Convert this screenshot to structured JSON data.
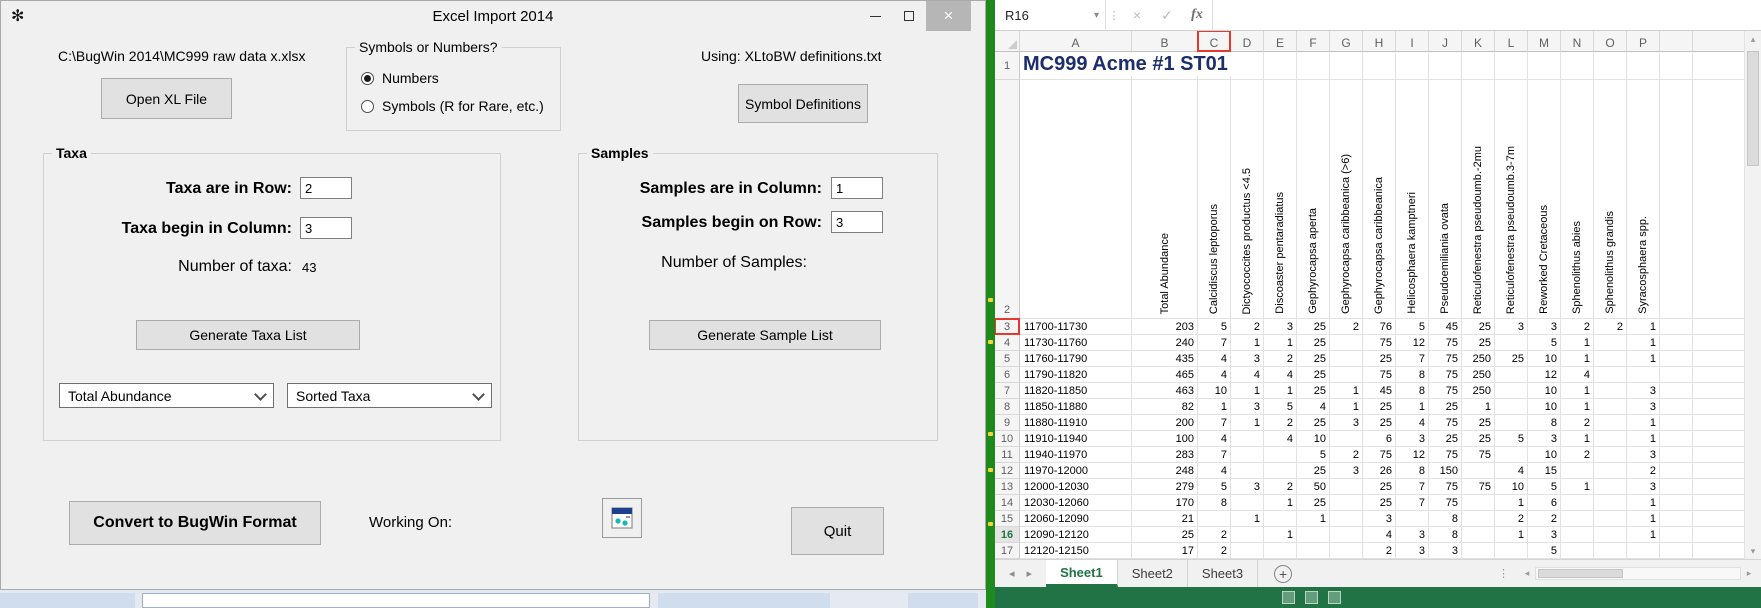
{
  "dialog": {
    "title": "Excel Import 2014",
    "file_path": "C:\\BugWin 2014\\MC999 raw data x.xlsx",
    "open_xl_button": "Open XL File",
    "symbols_group": {
      "label": "Symbols or Numbers?",
      "option_numbers": "Numbers",
      "option_symbols": "Symbols (R for Rare, etc.)",
      "selected": "Numbers"
    },
    "using_label": "Using:  XLtoBW definitions.txt",
    "symbol_definitions_button": "Symbol Definitions",
    "taxa_group": {
      "label": "Taxa",
      "row_label": "Taxa are in Row:",
      "row_value": "2",
      "col_label": "Taxa begin in Column:",
      "col_value": "3",
      "count_label": "Number of taxa:",
      "count_value": "43",
      "generate_button": "Generate Taxa List",
      "dropdown_sort": "Total Abundance",
      "dropdown_order": "Sorted Taxa"
    },
    "samples_group": {
      "label": "Samples",
      "col_label": "Samples are in Column:",
      "col_value": "1",
      "row_label": "Samples begin on Row:",
      "row_value": "3",
      "count_label": "Number of Samples:",
      "generate_button": "Generate Sample List"
    },
    "convert_button": "Convert to BugWin Format",
    "working_on_label": "Working On:",
    "quit_button": "Quit"
  },
  "excel": {
    "name_box": "R16",
    "fx_label": "fx",
    "title_cell": "MC999 Acme #1 ST01",
    "column_letters": [
      "A",
      "B",
      "C",
      "D",
      "E",
      "F",
      "G",
      "H",
      "I",
      "J",
      "K",
      "L",
      "M",
      "N",
      "O",
      "P"
    ],
    "highlighted_column": "C",
    "highlighted_row": 3,
    "active_row": 16,
    "taxa_headers": [
      "Total Abundance",
      "Calcidiscus leptoporus",
      "Dictyococcites productus <4.5",
      "Discoaster pentaradiatus",
      "Gephyrocapsa aperta",
      "Gephyrocapsa caribbeanica (>6)",
      "Gephyrocapsa caribbeanica",
      "Helicosphaera kamptneri",
      "Pseudoemiliania ovata",
      "Reticulofenestra pseudoumb.-2mu",
      "Reticulofenestra pseudoumb.3-7m",
      "Reworked Cretaceous",
      "Sphenolithus abies",
      "Sphenolithus grandis",
      "Syracosphaera spp."
    ],
    "rows": [
      {
        "num": 3,
        "sample": "11700-11730",
        "values": [
          "203",
          "5",
          "2",
          "3",
          "25",
          "2",
          "76",
          "5",
          "45",
          "25",
          "3",
          "3",
          "2",
          "2",
          "1"
        ]
      },
      {
        "num": 4,
        "sample": "11730-11760",
        "values": [
          "240",
          "7",
          "1",
          "1",
          "25",
          "",
          "75",
          "12",
          "75",
          "25",
          "",
          "5",
          "1",
          "",
          "1"
        ]
      },
      {
        "num": 5,
        "sample": "11760-11790",
        "values": [
          "435",
          "4",
          "3",
          "2",
          "25",
          "",
          "25",
          "7",
          "75",
          "250",
          "25",
          "10",
          "1",
          "",
          "1"
        ]
      },
      {
        "num": 6,
        "sample": "11790-11820",
        "values": [
          "465",
          "4",
          "4",
          "4",
          "25",
          "",
          "75",
          "8",
          "75",
          "250",
          "",
          "12",
          "4",
          "",
          ""
        ]
      },
      {
        "num": 7,
        "sample": "11820-11850",
        "values": [
          "463",
          "10",
          "1",
          "1",
          "25",
          "1",
          "45",
          "8",
          "75",
          "250",
          "",
          "10",
          "1",
          "",
          "3"
        ]
      },
      {
        "num": 8,
        "sample": "11850-11880",
        "values": [
          "82",
          "1",
          "3",
          "5",
          "4",
          "1",
          "25",
          "1",
          "25",
          "1",
          "",
          "10",
          "1",
          "",
          "3"
        ]
      },
      {
        "num": 9,
        "sample": "11880-11910",
        "values": [
          "200",
          "7",
          "1",
          "2",
          "25",
          "3",
          "25",
          "4",
          "75",
          "25",
          "",
          "8",
          "2",
          "",
          "1"
        ]
      },
      {
        "num": 10,
        "sample": "11910-11940",
        "values": [
          "100",
          "4",
          "",
          "4",
          "10",
          "",
          "6",
          "3",
          "25",
          "25",
          "5",
          "3",
          "1",
          "",
          "1"
        ]
      },
      {
        "num": 11,
        "sample": "11940-11970",
        "values": [
          "283",
          "7",
          "",
          "",
          "5",
          "2",
          "75",
          "12",
          "75",
          "75",
          "",
          "10",
          "2",
          "",
          "3"
        ]
      },
      {
        "num": 12,
        "sample": "11970-12000",
        "values": [
          "248",
          "4",
          "",
          "",
          "25",
          "3",
          "26",
          "8",
          "150",
          "",
          "4",
          "15",
          "",
          "",
          "2"
        ]
      },
      {
        "num": 13,
        "sample": "12000-12030",
        "values": [
          "279",
          "5",
          "3",
          "2",
          "50",
          "",
          "25",
          "7",
          "75",
          "75",
          "10",
          "5",
          "1",
          "",
          "3"
        ]
      },
      {
        "num": 14,
        "sample": "12030-12060",
        "values": [
          "170",
          "8",
          "",
          "1",
          "25",
          "",
          "25",
          "7",
          "75",
          "",
          "1",
          "6",
          "",
          "",
          "1"
        ]
      },
      {
        "num": 15,
        "sample": "12060-12090",
        "values": [
          "21",
          "",
          "1",
          "",
          "1",
          "",
          "3",
          "",
          "8",
          "",
          "2",
          "2",
          "",
          "",
          "1"
        ]
      },
      {
        "num": 16,
        "sample": "12090-12120",
        "values": [
          "25",
          "2",
          "",
          "1",
          "",
          "",
          "4",
          "3",
          "8",
          "",
          "1",
          "3",
          "",
          "",
          "1"
        ]
      },
      {
        "num": 17,
        "sample": "12120-12150",
        "values": [
          "17",
          "2",
          "",
          "",
          "",
          "",
          "2",
          "3",
          "3",
          "",
          "",
          "5",
          "",
          "",
          ""
        ]
      }
    ],
    "sheet_tabs": [
      "Sheet1",
      "Sheet2",
      "Sheet3"
    ],
    "active_tab": "Sheet1"
  },
  "colors": {
    "excel_green": "#217346",
    "cell_title_blue": "#1c2e6b",
    "annotation_red": "#e23a2e",
    "desktop_green": "#1e8a1e"
  }
}
